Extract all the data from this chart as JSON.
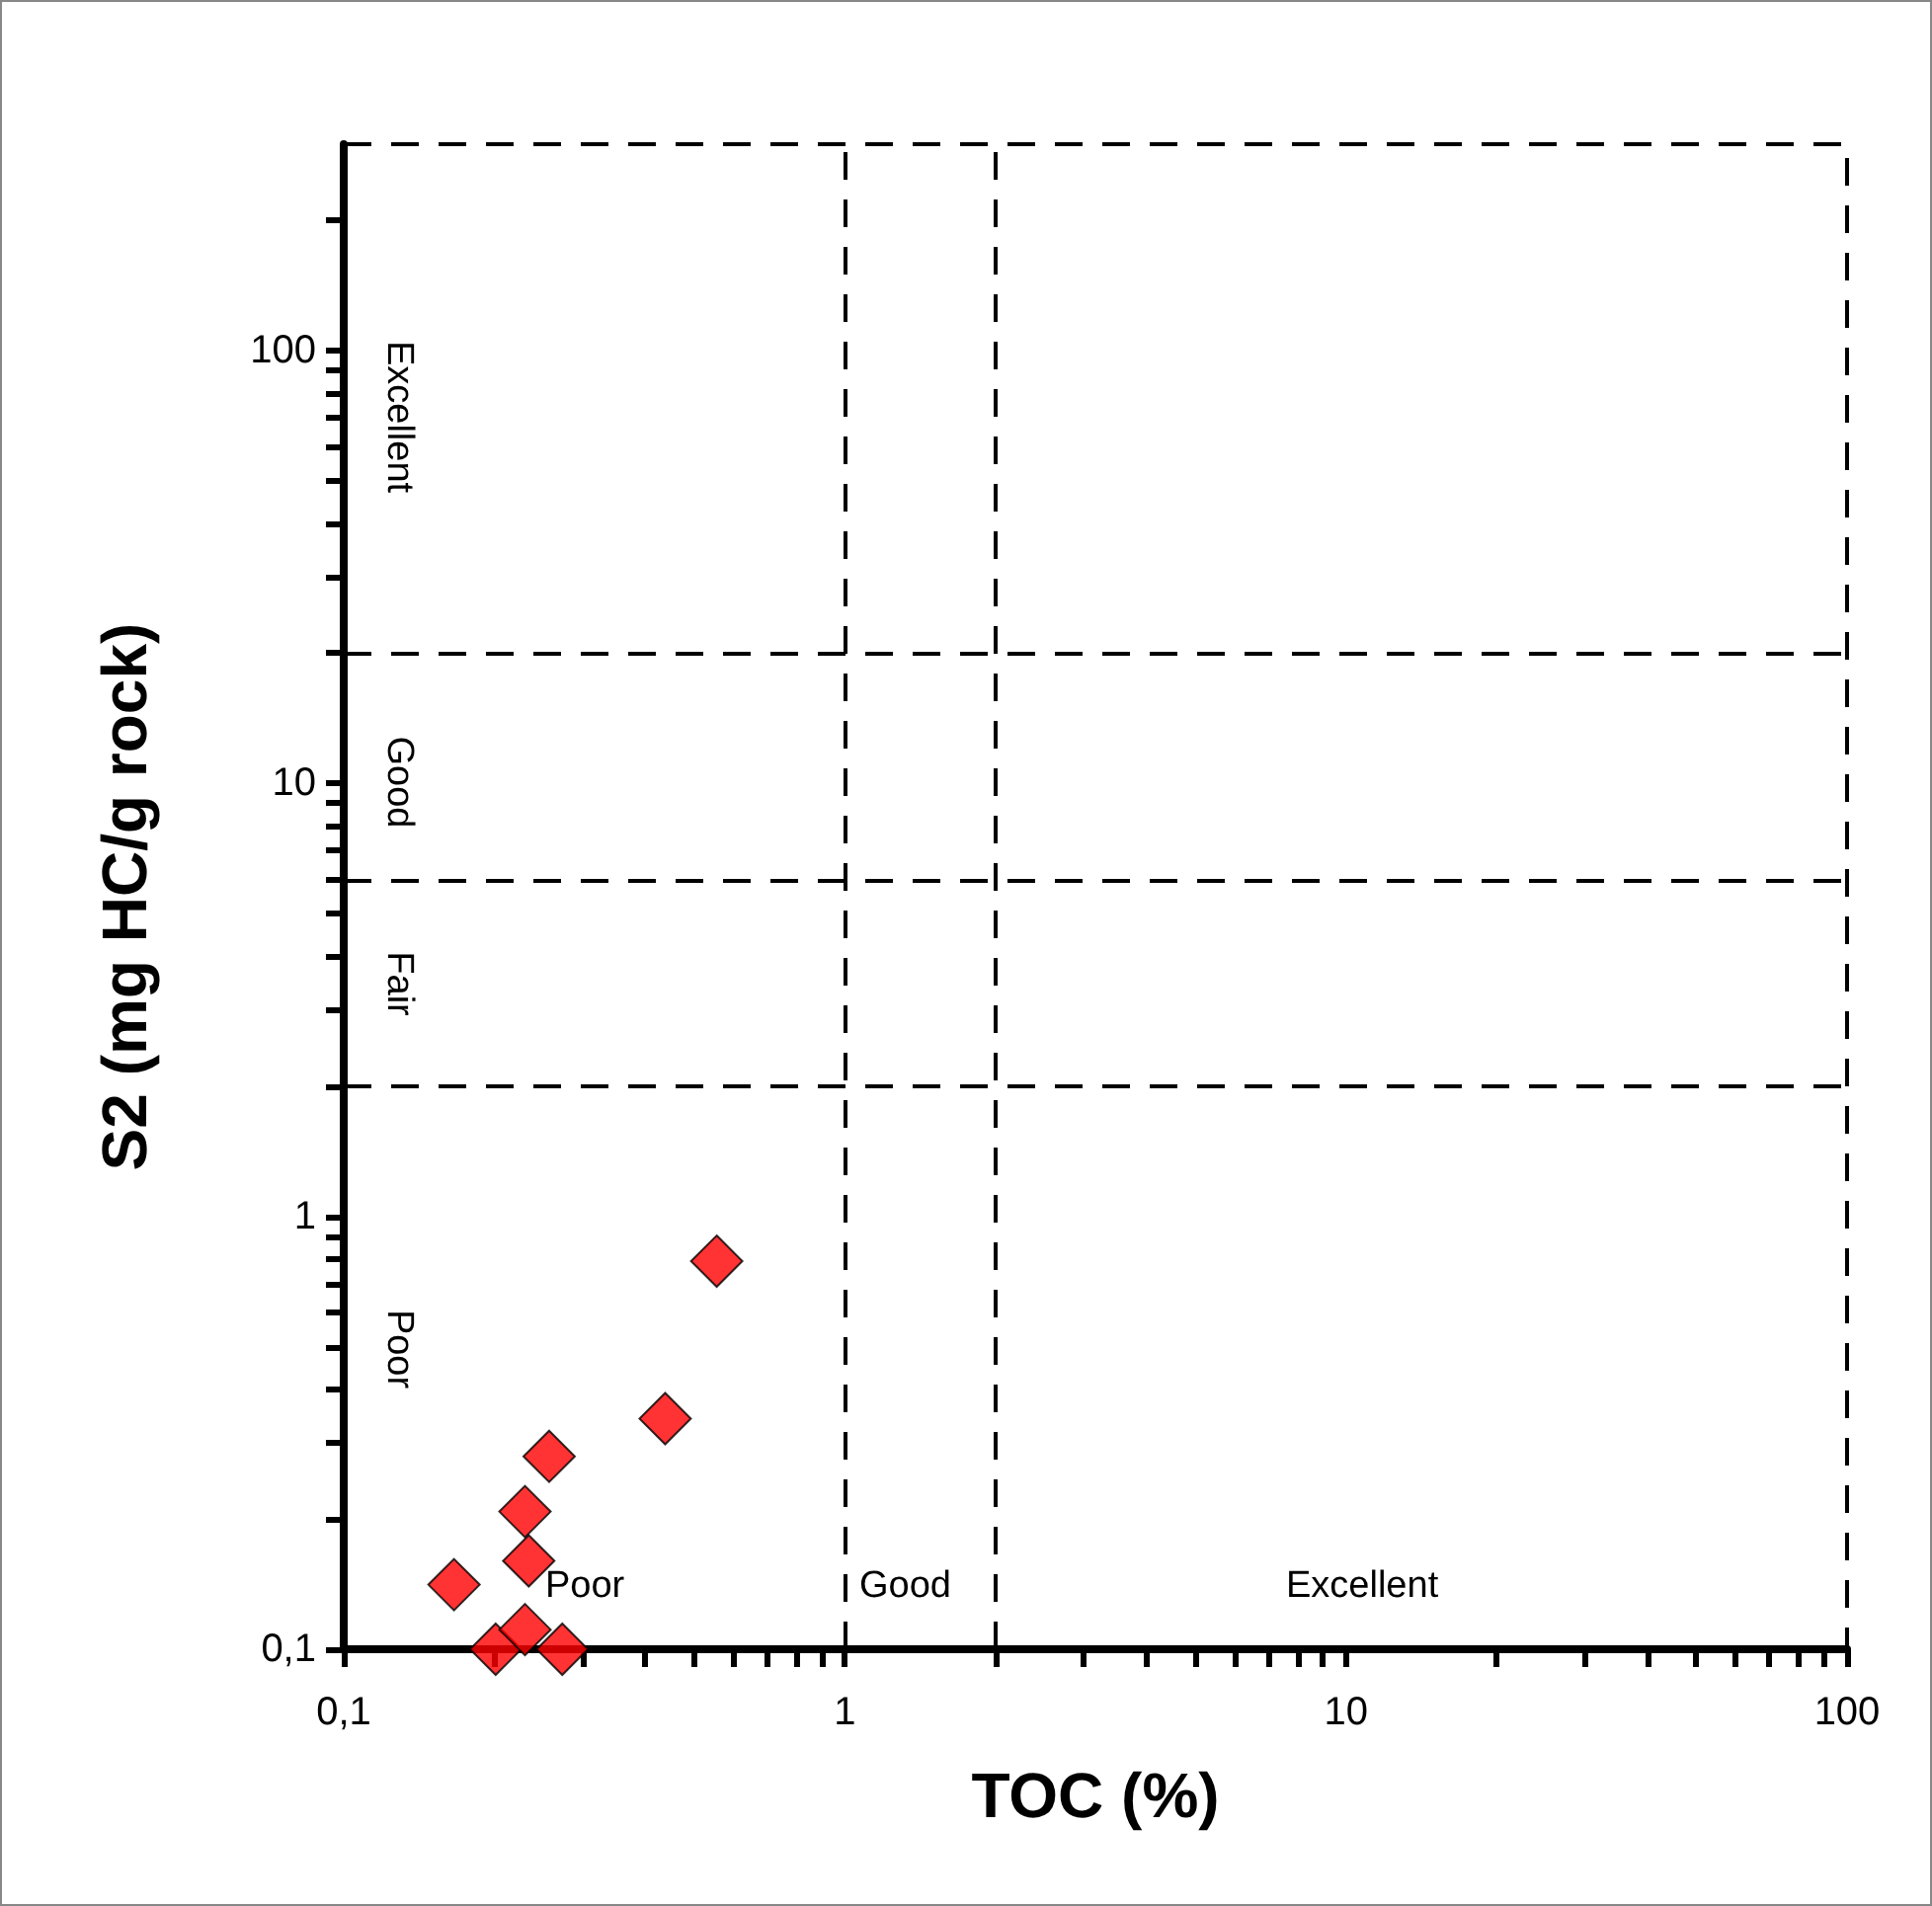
{
  "chart_data": {
    "type": "scatter",
    "xlabel": "TOC (%)",
    "ylabel": "S2 (mg HC/g rock)",
    "x": [
      0.166,
      0.201,
      0.23,
      0.23,
      0.234,
      0.257,
      0.273,
      0.438,
      0.555
    ],
    "series": [
      {
        "color": "#ff0000",
        "values": [
          0.141,
          0.1,
          0.111,
          0.208,
          0.16,
          0.279,
          0.1,
          0.341,
          0.788
        ]
      }
    ],
    "log": "xy",
    "grid": false,
    "marker": "diamond",
    "xlim": [
      0.1,
      100
    ],
    "ylim": [
      0.1,
      300
    ],
    "xticks": [
      {
        "value": 0.1,
        "label": "0,1"
      },
      {
        "value": 0.2,
        "label": null
      },
      {
        "value": 0.3,
        "label": null
      },
      {
        "value": 0.4,
        "label": null
      },
      {
        "value": 0.5,
        "label": null
      },
      {
        "value": 0.6,
        "label": null
      },
      {
        "value": 0.7,
        "label": null
      },
      {
        "value": 0.8,
        "label": null
      },
      {
        "value": 0.9,
        "label": null
      },
      1,
      {
        "value": 2,
        "label": null
      },
      {
        "value": 3,
        "label": null
      },
      {
        "value": 4,
        "label": null
      },
      {
        "value": 5,
        "label": null
      },
      {
        "value": 6,
        "label": null
      },
      {
        "value": 7,
        "label": null
      },
      {
        "value": 8,
        "label": null
      },
      {
        "value": 9,
        "label": null
      },
      10,
      {
        "value": 20,
        "label": null
      },
      {
        "value": 30,
        "label": null
      },
      {
        "value": 40,
        "label": null
      },
      {
        "value": 50,
        "label": null
      },
      {
        "value": 60,
        "label": null
      },
      {
        "value": 70,
        "label": null
      },
      {
        "value": 80,
        "label": null
      },
      {
        "value": 90,
        "label": null
      },
      100
    ],
    "yticks": [
      {
        "value": 0.1,
        "label": "0,1"
      },
      {
        "value": 0.2,
        "label": null
      },
      {
        "value": 0.3,
        "label": null
      },
      {
        "value": 0.4,
        "label": null
      },
      {
        "value": 0.5,
        "label": null
      },
      {
        "value": 0.6,
        "label": null
      },
      {
        "value": 0.7,
        "label": null
      },
      {
        "value": 0.8,
        "label": null
      },
      {
        "value": 0.9,
        "label": null
      },
      1,
      {
        "value": 2,
        "label": null
      },
      {
        "value": 3,
        "label": null
      },
      {
        "value": 4,
        "label": null
      },
      {
        "value": 5,
        "label": null
      },
      {
        "value": 6,
        "label": null
      },
      {
        "value": 7,
        "label": null
      },
      {
        "value": 8,
        "label": null
      },
      {
        "value": 9,
        "label": null
      },
      10,
      {
        "value": 20,
        "label": null
      },
      {
        "value": 30,
        "label": null
      },
      {
        "value": 40,
        "label": null
      },
      {
        "value": 50,
        "label": null
      },
      {
        "value": 60,
        "label": null
      },
      {
        "value": 70,
        "label": null
      },
      {
        "value": 80,
        "label": null
      },
      {
        "value": 90,
        "label": null
      },
      100,
      {
        "value": 200,
        "label": null
      }
    ],
    "ref_lines": [
      {
        "axis": "x",
        "value": 1,
        "line_style": "dashed",
        "color": "#000000"
      },
      {
        "axis": "x",
        "value": 2,
        "line_style": "dashed",
        "color": "#000000"
      },
      {
        "axis": "y",
        "value": 2,
        "line_style": "dashed",
        "color": "#000000"
      },
      {
        "axis": "y",
        "value": 6,
        "line_style": "dashed",
        "color": "#000000"
      },
      {
        "axis": "y",
        "value": 20,
        "line_style": "dashed",
        "color": "#000000"
      }
    ],
    "annotations": [
      "Excellent",
      "Good",
      "Fair",
      "Poor",
      "Poor",
      "Good",
      "Excellent"
    ]
  }
}
